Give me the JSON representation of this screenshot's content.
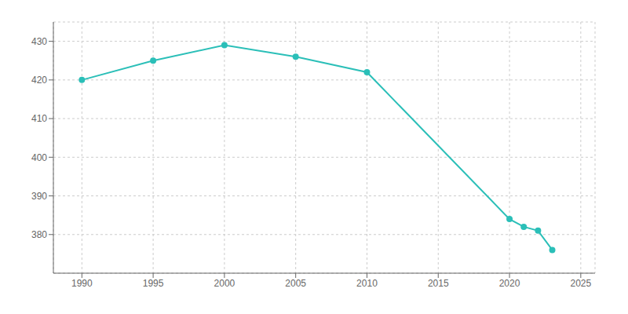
{
  "chart_data": {
    "type": "line",
    "x": [
      1990,
      1995,
      2000,
      2005,
      2010,
      2020,
      2021,
      2022,
      2023
    ],
    "values": [
      420,
      425,
      429,
      426,
      422,
      384,
      382,
      381,
      376
    ],
    "color": "#2bbfb8",
    "marker": "circle",
    "xlim": [
      1988,
      2026
    ],
    "ylim": [
      370,
      435
    ],
    "xticks": [
      1990,
      1995,
      2000,
      2005,
      2010,
      2015,
      2020,
      2025
    ],
    "yticks": [
      380,
      390,
      400,
      410,
      420,
      430
    ],
    "grid": true
  }
}
